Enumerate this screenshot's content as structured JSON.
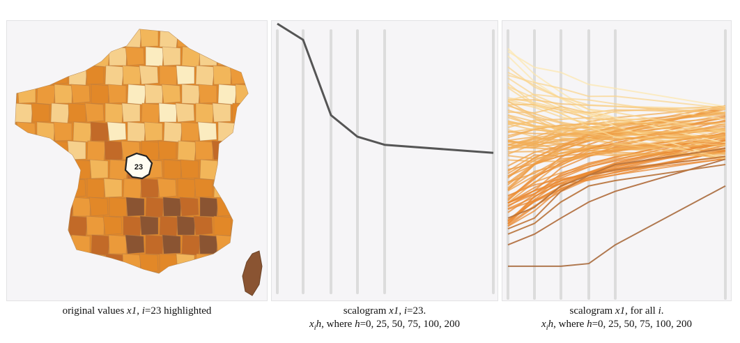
{
  "captions": {
    "map": {
      "pre": "original values ",
      "var": "x1",
      "mid": ", ",
      "idx": "i",
      "post": "=23 highlighted"
    },
    "single": {
      "line1_pre": "scalogram ",
      "line1_var": "x1",
      "line1_mid": ", ",
      "line1_idx": "i",
      "line1_post": "=23.",
      "line2_x": "x",
      "line2_sub": "i",
      "line2_h": "h",
      "line2_mid": ", where ",
      "line2_h2": "h",
      "line2_post": "=0, 25, 50, 75, 100, 200"
    },
    "all": {
      "line1_pre": "scalogram ",
      "line1_var": "x1",
      "line1_mid": ", for all ",
      "line1_idx": "i",
      "line1_post": ".",
      "line2_x": "x",
      "line2_sub": "i",
      "line2_h": "h",
      "line2_mid": ", where ",
      "line2_h2": "h",
      "line2_post": "=0, 25, 50, 75, 100, 200"
    }
  },
  "map": {
    "highlight_label": "23",
    "colors": [
      "#fbecc0",
      "#f6d08c",
      "#f2b65a",
      "#eb9a3a",
      "#e28828",
      "#c26a28",
      "#8a5432"
    ]
  },
  "chart_data": [
    {
      "type": "line",
      "title": "",
      "x": [
        0,
        25,
        50,
        75,
        100,
        200
      ],
      "series": [
        {
          "values": [
            1.0,
            0.94,
            0.66,
            0.58,
            0.55,
            0.52
          ]
        }
      ],
      "line_color": "#555555",
      "grid": "vertical lines at each h"
    },
    {
      "type": "line",
      "title": "",
      "x": [
        0,
        25,
        50,
        75,
        100,
        200
      ],
      "series_count": 96,
      "series": [
        {
          "values": [
            0.12,
            0.12,
            0.12,
            0.13,
            0.2,
            0.42
          ],
          "color": "#a86a3c"
        },
        {
          "values": [
            0.2,
            0.24,
            0.3,
            0.36,
            0.4,
            0.52
          ],
          "color": "#b06a38"
        },
        {
          "values": [
            0.24,
            0.28,
            0.36,
            0.42,
            0.44,
            0.5
          ],
          "color": "#b87238"
        },
        {
          "values": [
            0.26,
            0.3,
            0.4,
            0.46,
            0.48,
            0.53
          ],
          "color": "#c07538"
        },
        {
          "values": [
            0.3,
            0.34,
            0.42,
            0.46,
            0.5,
            0.56
          ],
          "color": "#b87238"
        }
      ],
      "grid": "vertical lines at each h"
    }
  ]
}
